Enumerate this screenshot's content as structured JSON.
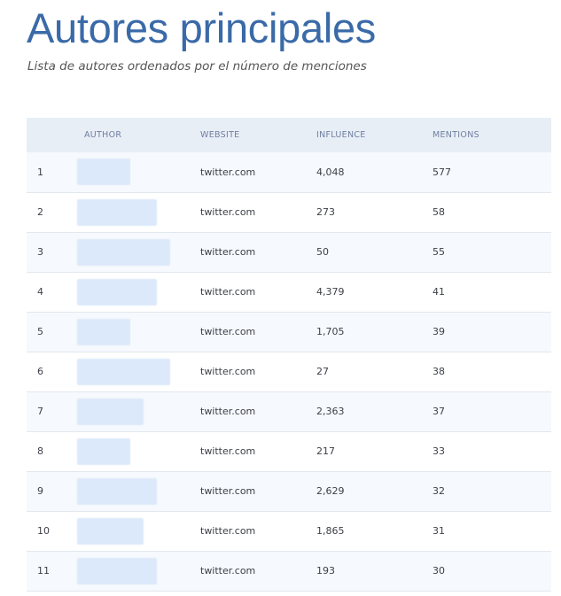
{
  "page": {
    "title": "Autores principales",
    "subtitle": "Lista de autores ordenados por el número de menciones"
  },
  "table": {
    "columns": {
      "rank": "",
      "author": "AUTHOR",
      "website": "WEBSITE",
      "influence": "INFLUENCE",
      "mentions": "MENTIONS"
    },
    "rows": [
      {
        "rank": "1",
        "website": "twitter.com",
        "influence": "4,048",
        "mentions": "577"
      },
      {
        "rank": "2",
        "website": "twitter.com",
        "influence": "273",
        "mentions": "58"
      },
      {
        "rank": "3",
        "website": "twitter.com",
        "influence": "50",
        "mentions": "55"
      },
      {
        "rank": "4",
        "website": "twitter.com",
        "influence": "4,379",
        "mentions": "41"
      },
      {
        "rank": "5",
        "website": "twitter.com",
        "influence": "1,705",
        "mentions": "39"
      },
      {
        "rank": "6",
        "website": "twitter.com",
        "influence": "27",
        "mentions": "38"
      },
      {
        "rank": "7",
        "website": "twitter.com",
        "influence": "2,363",
        "mentions": "37"
      },
      {
        "rank": "8",
        "website": "twitter.com",
        "influence": "217",
        "mentions": "33"
      },
      {
        "rank": "9",
        "website": "twitter.com",
        "influence": "2,629",
        "mentions": "32"
      },
      {
        "rank": "10",
        "website": "twitter.com",
        "influence": "1,865",
        "mentions": "31"
      },
      {
        "rank": "11",
        "website": "twitter.com",
        "influence": "193",
        "mentions": "30"
      }
    ]
  },
  "colors": {
    "title": "#3a6aa8",
    "header_bg": "#e8eef6",
    "row_alt_bg": "#f6f9fd",
    "redacted_author": "#dbe9fb"
  }
}
